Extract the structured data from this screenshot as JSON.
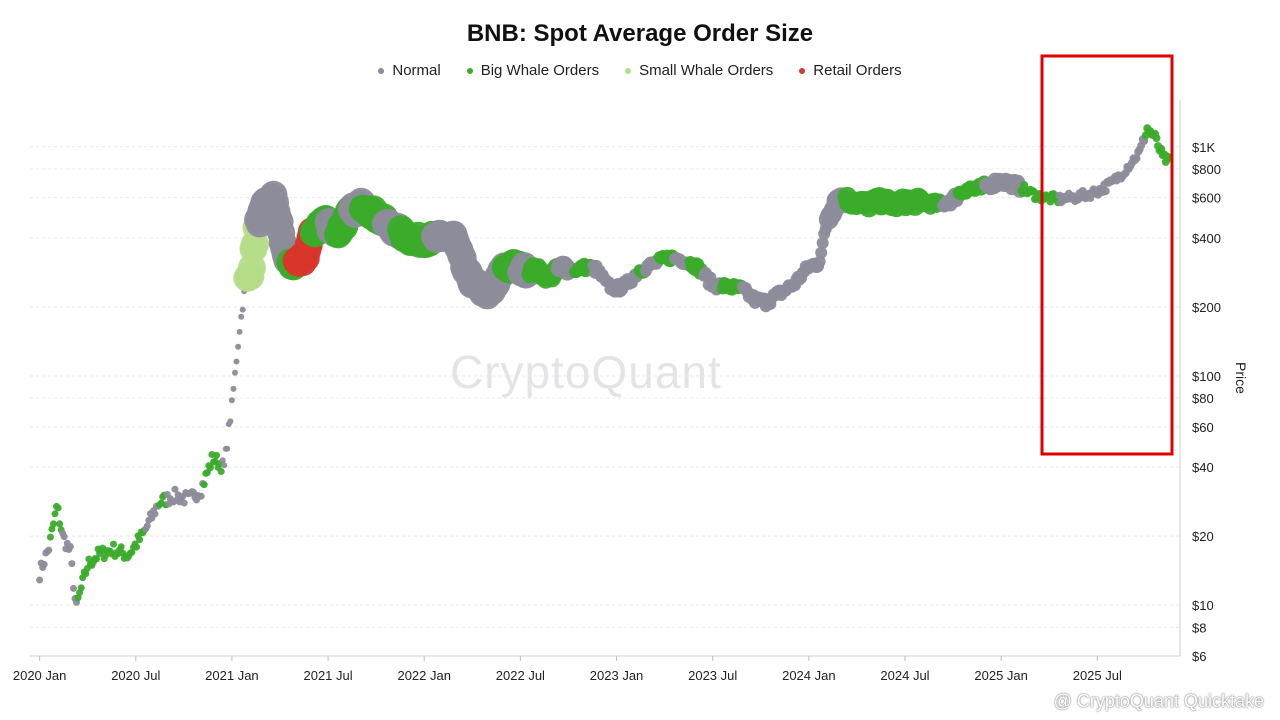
{
  "chart_data": {
    "type": "scatter",
    "title": "BNB: Spot Average Order Size",
    "ylabel": "Price",
    "xlabel": "",
    "y_scale": "log",
    "ylim": [
      6,
      1600
    ],
    "y_ticks": [
      {
        "value": 1000,
        "label": "$1K"
      },
      {
        "value": 800,
        "label": "$800"
      },
      {
        "value": 600,
        "label": "$600"
      },
      {
        "value": 400,
        "label": "$400"
      },
      {
        "value": 200,
        "label": "$200"
      },
      {
        "value": 100,
        "label": "$100"
      },
      {
        "value": 80,
        "label": "$80"
      },
      {
        "value": 60,
        "label": "$60"
      },
      {
        "value": 40,
        "label": "$40"
      },
      {
        "value": 20,
        "label": "$20"
      },
      {
        "value": 10,
        "label": "$10"
      },
      {
        "value": 8,
        "label": "$8"
      },
      {
        "value": 6,
        "label": "$6"
      }
    ],
    "x_ticks": [
      "2020 Jan",
      "2020 Jul",
      "2021 Jan",
      "2021 Jul",
      "2022 Jan",
      "2022 Jul",
      "2023 Jan",
      "2023 Jul",
      "2024 Jan",
      "2024 Jul",
      "2025 Jan",
      "2025 Jul"
    ],
    "xlim_years": [
      2019.95,
      2025.93
    ],
    "legend": [
      {
        "name": "Normal",
        "color": "#8c8c9a"
      },
      {
        "name": "Big Whale Orders",
        "color": "#3aac2a"
      },
      {
        "name": "Small Whale Orders",
        "color": "#b5dc88"
      },
      {
        "name": "Retail Orders",
        "color": "#d9362b"
      }
    ],
    "series": [
      {
        "name": "Price",
        "x": [
          2020.0,
          2020.05,
          2020.09,
          2020.12,
          2020.16,
          2020.19,
          2020.2,
          2020.25,
          2020.3,
          2020.38,
          2020.46,
          2020.54,
          2020.62,
          2020.7,
          2020.78,
          2020.84,
          2020.9,
          2020.96,
          2021.0,
          2021.04,
          2021.07,
          2021.1,
          2021.13,
          2021.17,
          2021.22,
          2021.28,
          2021.33,
          2021.38,
          2021.42,
          2021.48,
          2021.55,
          2021.62,
          2021.68,
          2021.75,
          2021.82,
          2021.88,
          2021.95,
          2022.02,
          2022.08,
          2022.15,
          2022.22,
          2022.28,
          2022.35,
          2022.42,
          2022.47,
          2022.52,
          2022.58,
          2022.65,
          2022.72,
          2022.78,
          2022.85,
          2022.9,
          2022.95,
          2023.0,
          2023.05,
          2023.12,
          2023.2,
          2023.28,
          2023.35,
          2023.42,
          2023.5,
          2023.58,
          2023.65,
          2023.72,
          2023.78,
          2023.85,
          2023.92,
          2024.0,
          2024.05,
          2024.1,
          2024.15,
          2024.22,
          2024.3,
          2024.38,
          2024.45,
          2024.52,
          2024.6,
          2024.68,
          2024.75,
          2024.82,
          2024.88,
          2024.95,
          2025.0,
          2025.08,
          2025.15,
          2025.22,
          2025.3,
          2025.38,
          2025.45,
          2025.52,
          2025.58,
          2025.63,
          2025.68,
          2025.72,
          2025.76,
          2025.8,
          2025.84,
          2025.88
        ],
        "y": [
          13.8,
          18,
          27,
          20,
          17,
          9.5,
          10.5,
          15,
          16.5,
          17.5,
          16.5,
          20.5,
          28,
          30,
          29,
          32,
          44,
          40,
          75,
          160,
          250,
          290,
          450,
          550,
          600,
          330,
          300,
          330,
          420,
          480,
          420,
          520,
          560,
          500,
          450,
          420,
          390,
          395,
          400,
          410,
          280,
          240,
          230,
          300,
          300,
          290,
          290,
          270,
          300,
          290,
          300,
          290,
          250,
          240,
          250,
          290,
          310,
          330,
          320,
          300,
          250,
          245,
          240,
          215,
          210,
          230,
          250,
          300,
          310,
          480,
          600,
          580,
          560,
          580,
          560,
          580,
          570,
          560,
          590,
          660,
          650,
          690,
          710,
          680,
          630,
          600,
          590,
          600,
          620,
          650,
          700,
          770,
          860,
          950,
          1200,
          1100,
          900,
          850
        ]
      }
    ],
    "highlight_box": {
      "from": "2025 Apr",
      "to": "2025 Nov",
      "color": "#e00000"
    }
  },
  "footer": {
    "credit": "@ CryptoQuant Quicktake"
  },
  "watermark": "CryptoQuant"
}
